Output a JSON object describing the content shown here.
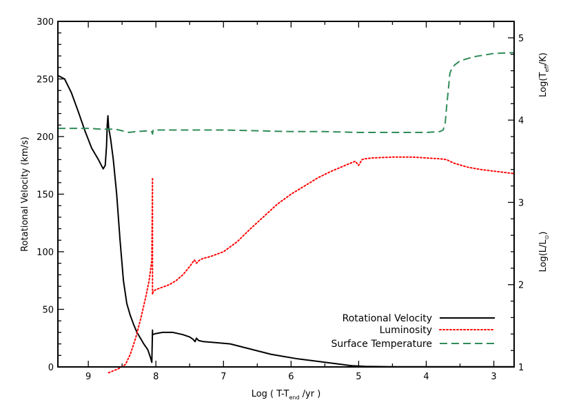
{
  "chart_data": {
    "type": "line",
    "x_axis": {
      "label_prefix": "Log ( T-T",
      "label_sub": "end",
      "label_suffix": " /yr )",
      "range": [
        9.45,
        2.7
      ],
      "ticks": [
        "9",
        "8",
        "7",
        "6",
        "5",
        "4",
        "3"
      ],
      "tick_values": [
        9,
        8,
        7,
        6,
        5,
        4,
        3
      ]
    },
    "y_left": {
      "label": "Rotational Velocity (km/s)",
      "range": [
        0,
        300
      ],
      "ticks": [
        "0",
        "50",
        "100",
        "150",
        "200",
        "250",
        "300"
      ],
      "tick_values": [
        0,
        50,
        100,
        150,
        200,
        250,
        300
      ]
    },
    "y_right": {
      "range": [
        1,
        5.2
      ],
      "ticks": [
        "1",
        "2",
        "3",
        "4",
        "5"
      ],
      "tick_values": [
        1,
        2,
        3,
        4,
        5
      ],
      "label_lum_prefix": "Log(L/L",
      "label_lum_sub": "⊙",
      "label_lum_suffix": ")",
      "label_teff_prefix": "Log(T",
      "label_teff_sub": "eff",
      "label_teff_suffix": "/K)"
    },
    "series": [
      {
        "name": "Rotational Velocity",
        "axis": "left",
        "color": "#000000",
        "style": "solid",
        "x": [
          9.45,
          9.35,
          9.25,
          9.15,
          9.05,
          8.95,
          8.85,
          8.78,
          8.75,
          8.73,
          8.72,
          8.71,
          8.7,
          8.67,
          8.63,
          8.58,
          8.53,
          8.48,
          8.43,
          8.38,
          8.33,
          8.28,
          8.23,
          8.18,
          8.12,
          8.08,
          8.06,
          8.05,
          8.05,
          8.0,
          7.9,
          7.75,
          7.6,
          7.5,
          7.45,
          7.42,
          7.4,
          7.37,
          7.3,
          7.1,
          6.9,
          6.7,
          6.5,
          6.3,
          6.1,
          5.9,
          5.7,
          5.5,
          5.3,
          5.1,
          4.9,
          4.5,
          4.0,
          3.5,
          3.0,
          2.7
        ],
        "y": [
          253,
          250,
          238,
          222,
          205,
          190,
          180,
          172,
          175,
          192,
          210,
          218,
          208,
          198,
          180,
          150,
          110,
          75,
          55,
          45,
          37,
          30,
          25,
          20,
          15,
          8,
          4,
          32,
          28,
          29,
          30,
          30,
          28,
          26,
          24,
          22,
          25,
          23,
          22,
          21,
          20,
          17,
          14,
          11,
          9,
          7,
          5.5,
          4,
          2.5,
          1,
          0.5,
          0.2,
          0.1,
          0.1,
          0.1,
          0.1
        ]
      },
      {
        "name": "Luminosity",
        "axis": "right",
        "color": "#ff0000",
        "style": "dotted",
        "x": [
          8.7,
          8.55,
          8.45,
          8.38,
          8.3,
          8.22,
          8.15,
          8.1,
          8.06,
          8.05,
          8.05,
          8.04,
          8.0,
          7.9,
          7.8,
          7.7,
          7.6,
          7.5,
          7.43,
          7.4,
          7.38,
          7.35,
          7.3,
          7.2,
          7.0,
          6.8,
          6.6,
          6.4,
          6.2,
          6.0,
          5.8,
          5.6,
          5.4,
          5.2,
          5.05,
          5.0,
          4.95,
          4.9,
          4.8,
          4.5,
          4.2,
          4.0,
          3.8,
          3.7,
          3.6,
          3.4,
          3.2,
          3.0,
          2.8,
          2.7
        ],
        "y": [
          0.93,
          0.98,
          1.03,
          1.15,
          1.35,
          1.6,
          1.85,
          2.05,
          2.3,
          3.3,
          1.88,
          1.92,
          1.94,
          1.97,
          2.0,
          2.05,
          2.12,
          2.22,
          2.3,
          2.26,
          2.28,
          2.3,
          2.32,
          2.34,
          2.4,
          2.52,
          2.68,
          2.83,
          2.98,
          3.1,
          3.2,
          3.3,
          3.38,
          3.45,
          3.5,
          3.45,
          3.52,
          3.53,
          3.54,
          3.55,
          3.55,
          3.54,
          3.53,
          3.52,
          3.48,
          3.43,
          3.4,
          3.38,
          3.36,
          3.35
        ]
      },
      {
        "name": "Surface Temperature",
        "axis": "right",
        "color": "#2e8b57",
        "style": "dashed",
        "x": [
          9.45,
          9.2,
          9.0,
          8.8,
          8.6,
          8.5,
          8.4,
          8.3,
          8.1,
          8.06,
          8.05,
          8.04,
          8.0,
          7.8,
          7.5,
          7.0,
          6.5,
          6.0,
          5.5,
          5.0,
          4.5,
          4.0,
          3.8,
          3.75,
          3.72,
          3.7,
          3.67,
          3.65,
          3.62,
          3.58,
          3.5,
          3.3,
          3.0,
          2.7
        ],
        "y": [
          3.9,
          3.9,
          3.9,
          3.89,
          3.89,
          3.87,
          3.85,
          3.86,
          3.87,
          3.86,
          3.83,
          3.88,
          3.88,
          3.88,
          3.88,
          3.88,
          3.87,
          3.86,
          3.86,
          3.85,
          3.85,
          3.85,
          3.86,
          3.88,
          3.96,
          4.15,
          4.4,
          4.57,
          4.63,
          4.67,
          4.72,
          4.77,
          4.81,
          4.82
        ]
      }
    ],
    "legend": {
      "placement": "bottom-right"
    }
  }
}
